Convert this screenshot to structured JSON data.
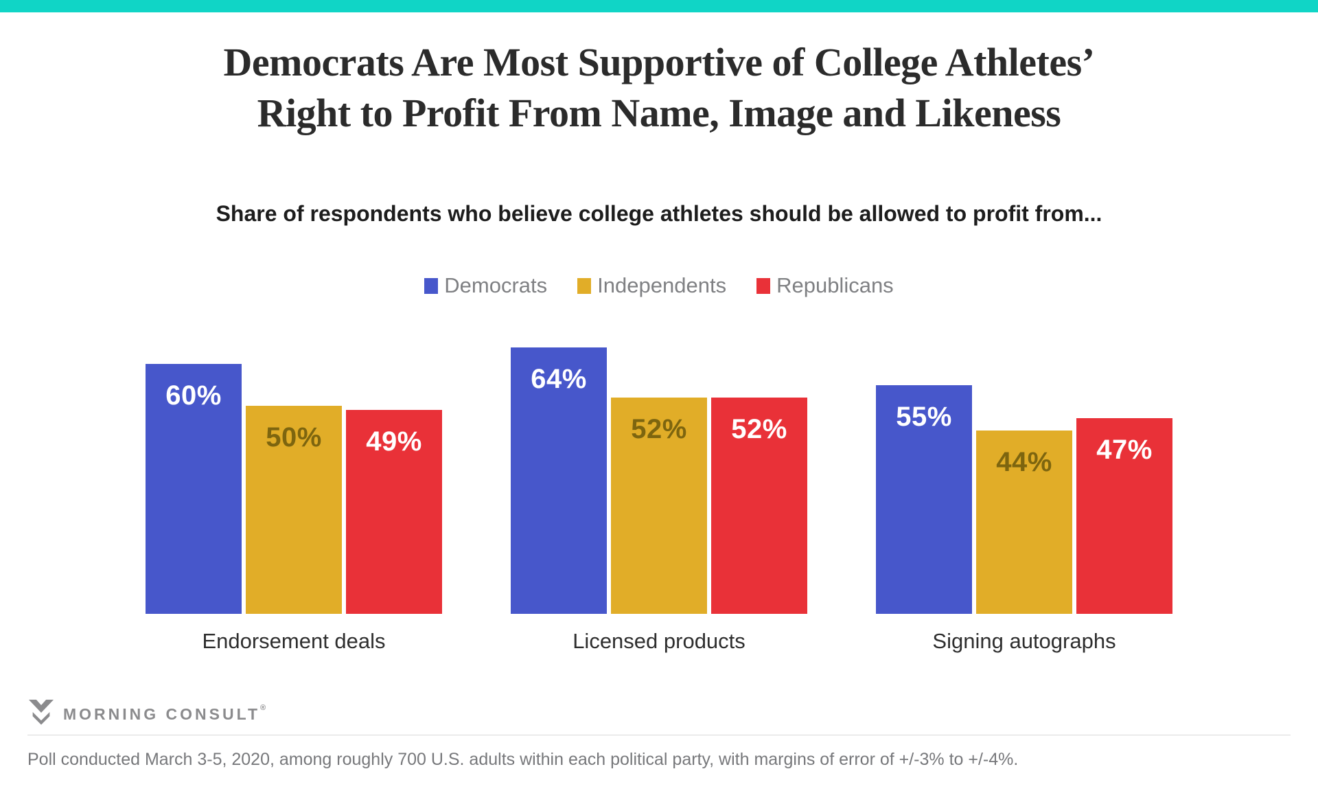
{
  "accent_color": "#10d5c6",
  "chart_data": {
    "type": "bar",
    "title": "Democrats Are Most Supportive of College Athletes’ Right to Profit From Name, Image and Likeness",
    "title_lines": [
      "Democrats Are Most Supportive of College Athletes’",
      "Right to Profit From Name, Image and Likeness"
    ],
    "subtitle": "Share of respondents who believe college athletes should be allowed to profit from...",
    "categories": [
      "Endorsement deals",
      "Licensed products",
      "Signing autographs"
    ],
    "series": [
      {
        "name": "Democrats",
        "color": "#4757cb",
        "label_color": "#ffffff",
        "values": [
          60,
          64,
          55
        ]
      },
      {
        "name": "Independents",
        "color": "#e1ad28",
        "label_color": "#7d650f",
        "values": [
          50,
          52,
          44
        ]
      },
      {
        "name": "Republicans",
        "color": "#e93138",
        "label_color": "#ffffff",
        "values": [
          49,
          52,
          47
        ]
      }
    ],
    "value_suffix": "%",
    "ylim": [
      0,
      70
    ],
    "grid": false,
    "legend_position": "top",
    "bar_label_position": "inside-top"
  },
  "branding": {
    "logo_text": "MORNING CONSULT",
    "registered_mark": "®"
  },
  "footer": {
    "text": "Poll conducted March 3-5, 2020, among roughly 700 U.S. adults within each political party, with margins of error of +/-3% to +/-4%."
  }
}
